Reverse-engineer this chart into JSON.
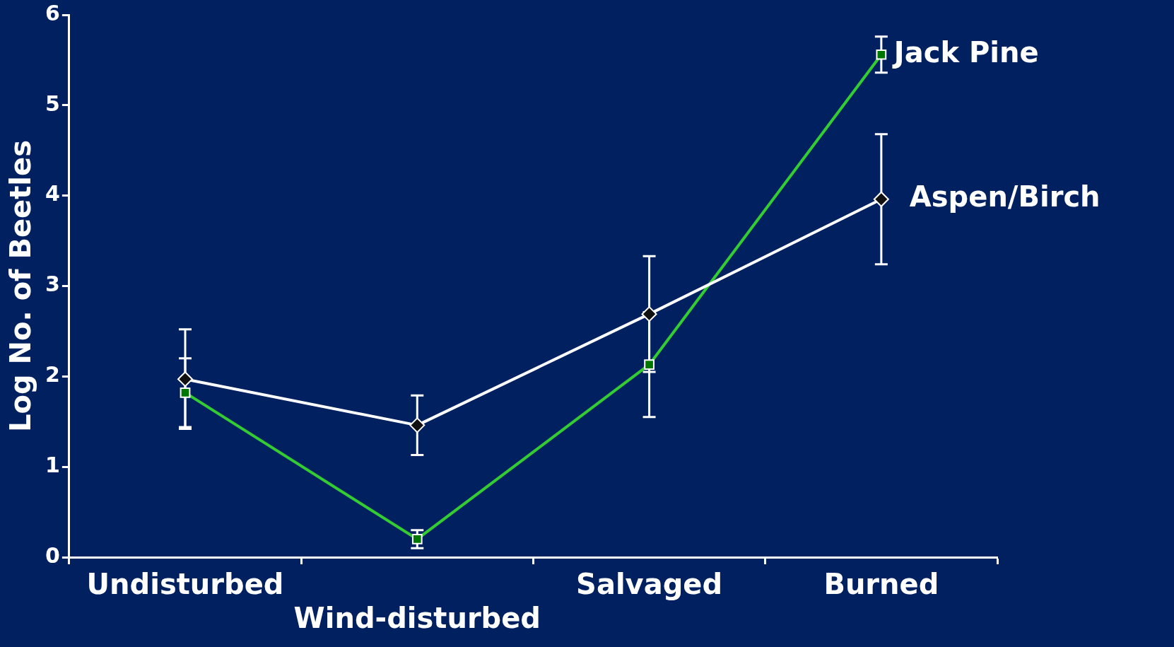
{
  "chart_data": {
    "type": "line",
    "ylabel": "Log No. of Beetles",
    "categories": [
      "Undisturbed",
      "Wind-disturbed",
      "Salvaged",
      "Burned"
    ],
    "ylim": [
      0,
      6
    ],
    "yticks": [
      0,
      1,
      2,
      3,
      4,
      5,
      6
    ],
    "grid": false,
    "legend": false,
    "series": [
      {
        "name": "Aspen/Birch",
        "color": "#ffffff",
        "marker": "diamond",
        "values": [
          1.97,
          1.46,
          2.69,
          3.96
        ],
        "errors": [
          0.55,
          0.33,
          0.64,
          0.72
        ]
      },
      {
        "name": "Jack Pine",
        "color": "#33cc33",
        "marker": "square",
        "values": [
          1.82,
          0.2,
          2.13,
          5.56
        ],
        "errors": [
          0.38,
          0.1,
          0.58,
          0.2
        ]
      }
    ]
  }
}
